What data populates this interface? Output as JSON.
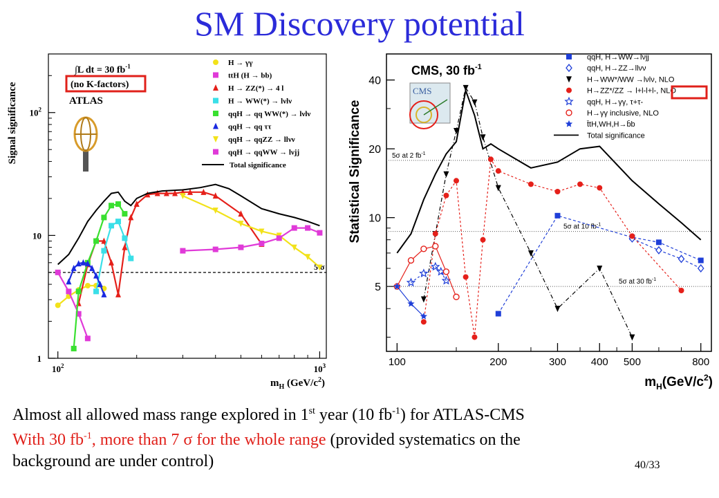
{
  "title": "SM Discovery potential",
  "page_number": "40/33",
  "caption": {
    "line1": {
      "a": "Almost all allowed mass range explored in 1",
      "a_sup": "st",
      "b": " year (10 fb",
      "b_sup": "-1",
      "c": ") for ATLAS-CMS"
    },
    "line2": {
      "a": "With 30 fb",
      "a_sup": "-1",
      "b": ", more than 7 σ for the whole range",
      "c": " (provided systematics on the"
    },
    "line3": "background are under control)"
  },
  "colors": {
    "title": "#2b2bd9",
    "highlight": "#e0201a",
    "highlight_box": "#e0201a"
  },
  "chart_data": [
    {
      "type": "line",
      "panel": "ATLAS",
      "ylabel": "Signal significance",
      "xlabel": "m_H (GeV/c^2)",
      "xscale": "log",
      "yscale": "log",
      "xlim": [
        92,
        1060
      ],
      "ylim": [
        1,
        300
      ],
      "x_ticks": [
        {
          "value": 100,
          "label": "10",
          "sup": "2"
        },
        {
          "value": 1000,
          "label": "10",
          "sup": "3"
        }
      ],
      "y_ticks": [
        {
          "value": 1,
          "label": "1"
        },
        {
          "value": 10,
          "label": "10"
        },
        {
          "value": 100,
          "label": "10",
          "sup": "2"
        }
      ],
      "lumi_label": "∫L dt = 30 fb",
      "lumi_sup": "-1",
      "kfactor_label": "(no K-factors)",
      "experiment_label": "ATLAS",
      "threshold": {
        "value": 5,
        "label": "5 σ"
      },
      "legend": [
        {
          "label": "H → γγ",
          "color": "#f2e21a",
          "marker": "circle"
        },
        {
          "label": "ttH (H → bb)",
          "color": "#e03ad8",
          "marker": "square"
        },
        {
          "label": "H → ZZ(*) → 4 l",
          "color": "#e5201a",
          "marker": "triangle"
        },
        {
          "label": "H → WW(*) → lνlν",
          "color": "#3adfe8",
          "marker": "square"
        },
        {
          "label": "qqH → qq WW(*) → lνlν",
          "color": "#39e030",
          "marker": "square"
        },
        {
          "label": "qqH → qq ττ",
          "color": "#1a2ae0",
          "marker": "triangle"
        },
        {
          "label": "qqH → qqZZ → llνν",
          "color": "#f2e21a",
          "marker": "triangledown"
        },
        {
          "label": "qqH → qqWW → lνjj",
          "color": "#e03ad8",
          "marker": "square"
        },
        {
          "label": "Total significance",
          "color": "#000000",
          "marker": "line"
        }
      ],
      "series": [
        {
          "name": "H → γγ",
          "color": "#f2e21a",
          "marker": "circle",
          "x": [
            100,
            110,
            120,
            130,
            140,
            150
          ],
          "y": [
            2.7,
            3.2,
            3.6,
            3.9,
            3.9,
            3.7
          ]
        },
        {
          "name": "ttH (H → bb)",
          "color": "#e03ad8",
          "marker": "square",
          "x": [
            100,
            110,
            120,
            130
          ],
          "y": [
            5.0,
            3.5,
            2.3,
            1.45
          ]
        },
        {
          "name": "H → ZZ(*) → 4 l",
          "color": "#e5201a",
          "marker": "triangle",
          "x": [
            120,
            130,
            140,
            150,
            160,
            170,
            180,
            190,
            200,
            220,
            240,
            260,
            280,
            300,
            320,
            360,
            400,
            500,
            600
          ],
          "y": [
            2.8,
            5.8,
            9.0,
            9.0,
            6.0,
            3.3,
            8.0,
            14.0,
            18.0,
            21.5,
            22.0,
            22.0,
            22.0,
            22.5,
            22.5,
            22.5,
            21.0,
            15.0,
            8.5
          ]
        },
        {
          "name": "H → WW(*) → lνlν",
          "color": "#3adfe8",
          "marker": "square",
          "x": [
            140,
            150,
            160,
            170,
            180,
            190
          ],
          "y": [
            3.5,
            7.5,
            12.0,
            13.0,
            9.5,
            6.5
          ]
        },
        {
          "name": "qqH → qq WW(*) → lνlν",
          "color": "#39e030",
          "marker": "square",
          "x": [
            115,
            120,
            130,
            140,
            150,
            160,
            170,
            180
          ],
          "y": [
            1.2,
            3.5,
            6.0,
            9.0,
            14.0,
            17.5,
            18.0,
            15.0
          ]
        },
        {
          "name": "qqH → qq ττ",
          "color": "#1a2ae0",
          "marker": "triangle",
          "x": [
            110,
            115,
            120,
            125,
            130,
            135,
            140,
            145,
            150
          ],
          "y": [
            4.2,
            5.4,
            5.9,
            6.0,
            5.9,
            5.4,
            4.7,
            4.0,
            3.3
          ]
        },
        {
          "name": "qqH → qqZZ → llνν",
          "color": "#f2e21a",
          "marker": "triangledown",
          "x": [
            300,
            400,
            500,
            600,
            700,
            800,
            900,
            1000
          ],
          "y": [
            21.0,
            16.0,
            12.5,
            10.8,
            10.0,
            8.0,
            6.7,
            5.5
          ]
        },
        {
          "name": "qqH → qqWW → lνjj",
          "color": "#e03ad8",
          "marker": "square",
          "x": [
            300,
            400,
            500,
            600,
            700,
            800,
            900,
            1000
          ],
          "y": [
            7.5,
            7.7,
            8.0,
            8.6,
            9.5,
            11.5,
            11.5,
            10.5
          ]
        },
        {
          "name": "Total significance",
          "color": "#000000",
          "marker": "none",
          "x": [
            100,
            110,
            120,
            130,
            140,
            150,
            160,
            170,
            180,
            190,
            200,
            220,
            250,
            300,
            350,
            400,
            450,
            500,
            600,
            700,
            800,
            900,
            1000
          ],
          "y": [
            5.8,
            7.0,
            9.5,
            13.0,
            16.0,
            19.0,
            22.0,
            22.5,
            19.0,
            17.5,
            20.0,
            22.0,
            23.0,
            23.5,
            24.5,
            26.0,
            24.0,
            21.0,
            16.5,
            15.0,
            14.0,
            13.0,
            12.0
          ]
        }
      ]
    },
    {
      "type": "line",
      "panel": "CMS",
      "ylabel": "Statistical Significance",
      "xlabel": "m_H(GeV/c^2)",
      "xscale": "log",
      "yscale": "log",
      "xlim": [
        93,
        860
      ],
      "ylim": [
        2.6,
        52
      ],
      "x_ticks": [
        100,
        200,
        300,
        400,
        500,
        800
      ],
      "y_ticks": [
        5,
        10,
        20,
        40
      ],
      "header": "CMS, 30 fb",
      "header_sup": "-1",
      "logo_text": "CMS",
      "reference_lines": [
        {
          "value": 17.8,
          "label": "5σ at 2 fb",
          "label_sup": "-1"
        },
        {
          "value": 8.7,
          "label": "5σ at 10 fb",
          "label_sup": "-1"
        },
        {
          "value": 5.0,
          "label": "5σ at 30 fb",
          "label_sup": "-1"
        }
      ],
      "legend": [
        {
          "label": "qqH, H→WW→lνjj",
          "color": "#1f3fd8",
          "marker": "square"
        },
        {
          "label": "qqH, H→ZZ→llνν",
          "color": "#1f3fd8",
          "marker": "diamond-open"
        },
        {
          "label": "H→WW*/WW →lνlν, NLO",
          "color": "#000000",
          "marker": "triangledown"
        },
        {
          "label": "H→ZZ*/ZZ → l+l-l+l-, NLO",
          "color": "#e5201a",
          "marker": "circle"
        },
        {
          "label": "qqH, H→γγ, τ+τ-",
          "color": "#1f3fd8",
          "marker": "star-open"
        },
        {
          "label": "H→γγ inclusive, NLO",
          "color": "#e5201a",
          "marker": "circle-open"
        },
        {
          "label": "t̄tH,WH,H→b̄b",
          "color": "#1f3fd8",
          "marker": "star"
        },
        {
          "label": "Total significance",
          "color": "#000000",
          "marker": "line"
        }
      ],
      "series": [
        {
          "name": "qqH, H→WW→lνjj",
          "color": "#1f3fd8",
          "marker": "square",
          "dash": "4,3",
          "x": [
            200,
            300,
            500,
            600,
            800
          ],
          "y": [
            3.8,
            10.2,
            8.2,
            7.8,
            6.5
          ]
        },
        {
          "name": "qqH, H→ZZ→llνν",
          "color": "#1f3fd8",
          "marker": "diamond-open",
          "dash": "4,3",
          "x": [
            500,
            600,
            700,
            800
          ],
          "y": [
            8.1,
            7.2,
            6.6,
            6.0
          ]
        },
        {
          "name": "H→WW*/WW →lνlν, NLO",
          "color": "#000000",
          "marker": "triangledown",
          "dash": "6,3,1,3",
          "x": [
            120,
            130,
            140,
            150,
            160,
            170,
            180,
            200,
            250,
            300,
            400,
            500
          ],
          "y": [
            4.4,
            8.5,
            15.5,
            24.0,
            37.0,
            32.0,
            22.5,
            13.5,
            7.0,
            4.0,
            6.0,
            3.0
          ]
        },
        {
          "name": "H→ZZ*/ZZ → l+l-l+l-, NLO",
          "color": "#e5201a",
          "marker": "circle",
          "dash": "3,3",
          "x": [
            120,
            130,
            140,
            150,
            160,
            170,
            180,
            190,
            200,
            250,
            300,
            350,
            400,
            500,
            700
          ],
          "y": [
            3.5,
            8.5,
            12.5,
            14.5,
            5.5,
            3.0,
            8.0,
            18.0,
            16.0,
            14.0,
            13.0,
            14.0,
            13.5,
            8.3,
            4.8
          ]
        },
        {
          "name": "qqH, H→γγ, τ+τ-",
          "color": "#1f3fd8",
          "marker": "star-open",
          "dash": "3,3",
          "x": [
            110,
            120,
            130,
            135,
            140
          ],
          "y": [
            5.2,
            5.7,
            6.1,
            5.8,
            5.3
          ]
        },
        {
          "name": "H→γγ inclusive, NLO",
          "color": "#e5201a",
          "marker": "circle-open",
          "dash": "none",
          "x": [
            100,
            110,
            120,
            130,
            140,
            150
          ],
          "y": [
            5.0,
            6.5,
            7.3,
            7.5,
            5.8,
            4.5
          ]
        },
        {
          "name": "t̄tH,WH,H→b̄b",
          "color": "#1f3fd8",
          "marker": "star",
          "dash": "none",
          "x": [
            100,
            110,
            120
          ],
          "y": [
            5.0,
            4.2,
            3.7
          ]
        },
        {
          "name": "Total significance",
          "color": "#000000",
          "marker": "none",
          "dash": "none",
          "x": [
            100,
            110,
            120,
            130,
            140,
            150,
            160,
            170,
            180,
            190,
            200,
            250,
            300,
            350,
            400,
            500,
            600,
            700,
            800
          ],
          "y": [
            7.0,
            8.5,
            12.0,
            15.5,
            19.0,
            21.5,
            36.0,
            28.0,
            20.0,
            21.0,
            20.0,
            16.5,
            17.5,
            20.0,
            20.5,
            14.5,
            11.5,
            9.5,
            8.0
          ]
        }
      ]
    }
  ]
}
